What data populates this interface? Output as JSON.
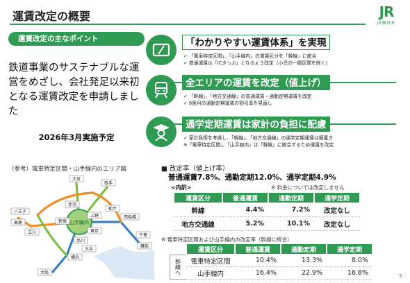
{
  "header": {
    "title": "運賃改定の概要",
    "logo_text": "JR",
    "logo_sub": "JR東日本"
  },
  "left": {
    "points_heading": "運賃改定の主なポイント",
    "lead": "鉄道事業のサステナブルな運営をめざし、会社発足以来初となる運賃改定を申請しました",
    "implementation": "2026年3月実施予定"
  },
  "points": [
    {
      "icon": "ticket-card-icon",
      "title": "「わかりやすい運賃体系」を実現",
      "bullets": [
        "「電車特定区間」、「山手線内」の運賃区分を「幹線」に統合",
        "普通運賃は「ICきっぷ」となるよう改定（小児の一部区間を除く）"
      ]
    },
    {
      "icon": "train-icon",
      "title": "全エリアの運賃を改定（値上げ）",
      "bullets": [
        "「幹線」、「地方交通線」の普通運賃・通勤定期運賃を改定",
        "6箇月の通勤定期運賃の割引率を見直し"
      ]
    },
    {
      "icon": "student-icon",
      "title": "通学定期運賃は家計の負担に配慮",
      "bullets": [
        "家計負担を考慮し、「幹線」、「地方交通線」の通学定期運賃は据置き",
        "※「電車特定区間」、「山手線内」は「幹線」に統合するため運賃を改定"
      ]
    }
  ],
  "map": {
    "label": "（参考）電車特定区間・山手線内のエリア図",
    "yamanote_label": "山手線内",
    "stations": [
      "大宮",
      "取手",
      "松戸",
      "赤羽",
      "上野",
      "東京",
      "新宿",
      "品川",
      "立川",
      "八王子",
      "高尾",
      "横浜",
      "大船",
      "千葉",
      "西船橋",
      "蘇我",
      "大井"
    ]
  },
  "rates": {
    "heading": "■ 改定率（値上げ率）",
    "summary": "普通運賃7.8%、通勤定期12.0%、通学定期4.9%",
    "breakdown_label": "<内訳>",
    "fare_note": "※ 料金については改定しません",
    "table1": {
      "headers": [
        "運賃区分",
        "普通運賃",
        "通勤定期",
        "通学定期"
      ],
      "rows": [
        [
          "幹線",
          "4.4%",
          "7.2%",
          "改定なし"
        ],
        [
          "地方交通線",
          "5.2%",
          "10.1%",
          "改定なし"
        ]
      ]
    },
    "trunk_note": "※ 電車特定区間および山手線内の改定率（幹線に統合）",
    "table2": {
      "group_label": "幹線へ",
      "headers": [
        "運賃区分",
        "普通運賃",
        "通勤定期",
        "通学定期"
      ],
      "rows": [
        [
          "電車特定区間",
          "10.4%",
          "13.3%",
          "8.0%"
        ],
        [
          "山手線内",
          "16.4%",
          "22.9%",
          "16.8%"
        ]
      ]
    }
  },
  "footer": {
    "page_number": "3"
  },
  "colors": {
    "accent": "#2e9a52",
    "map_line_green": "#7cc242",
    "map_line_blue": "#3a7dc9",
    "map_line_orange": "#f08c2a"
  }
}
